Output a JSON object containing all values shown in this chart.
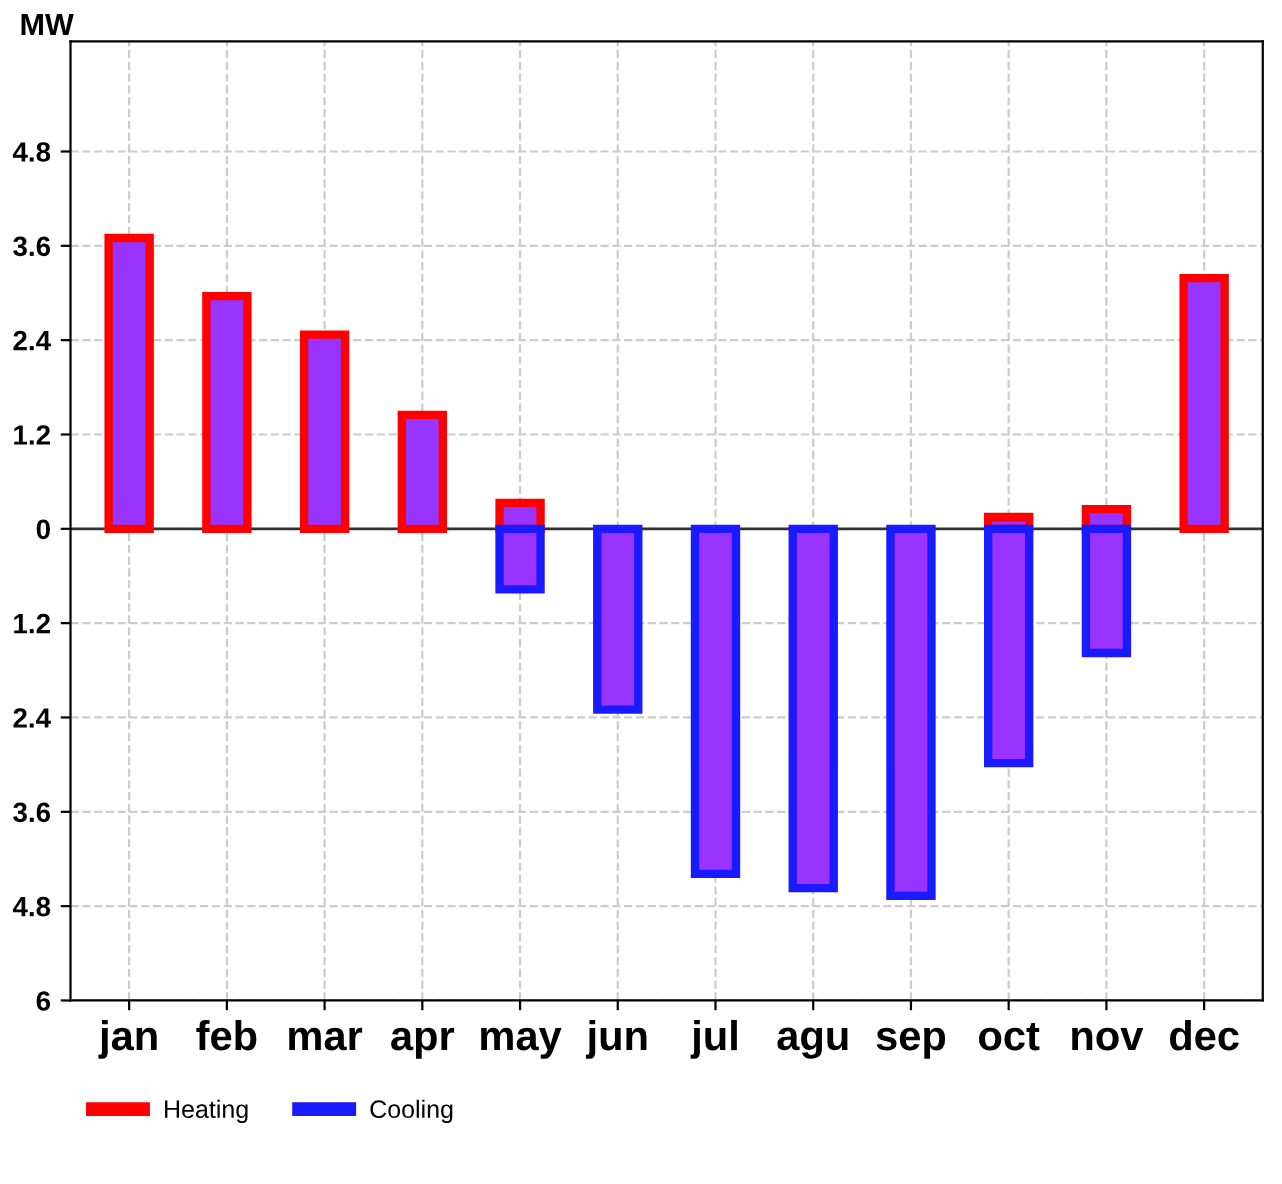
{
  "chart_data": {
    "type": "bar",
    "ylabel": "MW",
    "categories": [
      "jan",
      "feb",
      "mar",
      "apr",
      "may",
      "jun",
      "jul",
      "agu",
      "sep",
      "oct",
      "nov",
      "dec"
    ],
    "series": [
      {
        "name": "Heating",
        "color": "#ff0000",
        "values": [
          3.7,
          2.96,
          2.47,
          1.45,
          0.33,
          null,
          null,
          null,
          null,
          0.15,
          0.25,
          3.19
        ]
      },
      {
        "name": "Cooling",
        "color": "#1a1aff",
        "values": [
          null,
          null,
          null,
          null,
          -0.77,
          -2.3,
          -4.39,
          -4.57,
          -4.67,
          -2.98,
          -1.58,
          null
        ]
      }
    ],
    "ylim": [
      -6,
      6.2
    ],
    "yticks": [
      {
        "value": -6,
        "label": "6"
      },
      {
        "value": -4.8,
        "label": "4.8"
      },
      {
        "value": -3.6,
        "label": "3.6"
      },
      {
        "value": -2.4,
        "label": "2.4"
      },
      {
        "value": -1.2,
        "label": "1.2"
      },
      0,
      1.2,
      2.4,
      3.6,
      4.8
    ],
    "grid": true,
    "legend": "bottom left"
  }
}
